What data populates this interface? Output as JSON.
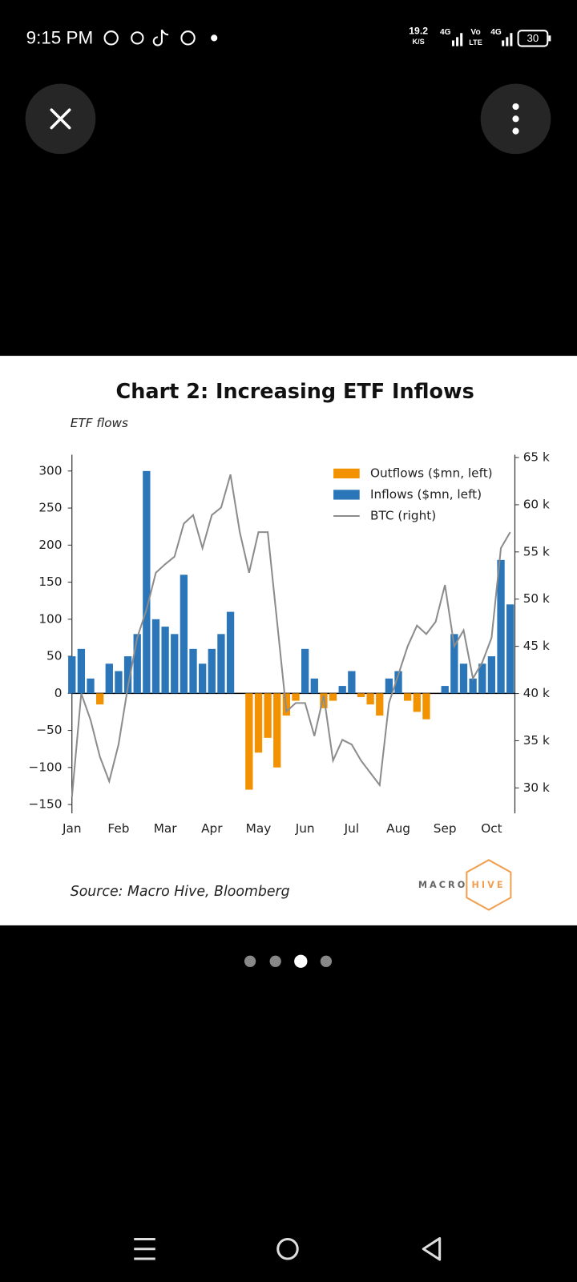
{
  "status_bar": {
    "time": "9:15 PM",
    "speed": "19.2",
    "speed_unit": "K/S",
    "signals": [
      "4G",
      "4G"
    ],
    "volte": [
      "Vo",
      "LTE"
    ],
    "battery": "30"
  },
  "chart_data": {
    "type": "bar",
    "title": "Chart 2: Increasing ETF Inflows",
    "subtitle": "ETF flows",
    "source": "Source: Macro Hive, Bloomberg",
    "logo": [
      "MACRO",
      "HIVE"
    ],
    "x": [
      0,
      0.2,
      0.4,
      0.6,
      0.8,
      1.0,
      1.2,
      1.4,
      1.6,
      1.8,
      2.0,
      2.2,
      2.4,
      2.6,
      2.8,
      3.0,
      3.2,
      3.4,
      3.6,
      3.8,
      4.0,
      4.2,
      4.4,
      4.6,
      4.8,
      5.0,
      5.2,
      5.4,
      5.6,
      5.8,
      6.0,
      6.2,
      6.4,
      6.6,
      6.8,
      7.0,
      7.2,
      7.4,
      7.6,
      7.8,
      8.0,
      8.2,
      8.4,
      8.6,
      8.8,
      9.0,
      9.2,
      9.4
    ],
    "series": [
      {
        "name": "Outflows ($mn, left)",
        "type": "bar",
        "color": "#f39200",
        "values": [
          null,
          null,
          null,
          -15,
          null,
          null,
          null,
          null,
          null,
          null,
          null,
          null,
          null,
          null,
          null,
          null,
          null,
          null,
          null,
          -130,
          -80,
          -60,
          -100,
          -30,
          -10,
          null,
          null,
          -20,
          -10,
          null,
          null,
          -5,
          -15,
          -30,
          null,
          null,
          -10,
          -25,
          -35,
          null,
          null,
          null,
          null,
          null,
          null,
          null,
          null,
          null
        ]
      },
      {
        "name": "Inflows ($mn, left)",
        "type": "bar",
        "color": "#2a76b8",
        "values": [
          50,
          60,
          20,
          null,
          40,
          30,
          50,
          80,
          300,
          100,
          90,
          80,
          160,
          60,
          40,
          60,
          80,
          110,
          null,
          null,
          null,
          null,
          null,
          null,
          null,
          60,
          20,
          null,
          null,
          10,
          30,
          null,
          null,
          null,
          20,
          30,
          null,
          null,
          null,
          null,
          10,
          80,
          40,
          20,
          40,
          50,
          180,
          120
        ]
      },
      {
        "name": "BTC (right)",
        "type": "line",
        "axis": "y2",
        "color": "#8c8c8c",
        "values": [
          29000,
          40000,
          37200,
          33300,
          30700,
          34600,
          40700,
          45900,
          48900,
          52800,
          53700,
          54500,
          58000,
          58900,
          55400,
          58900,
          59700,
          63200,
          57100,
          52800,
          57100,
          57100,
          47600,
          38100,
          39000,
          39000,
          35500,
          39800,
          32900,
          35100,
          34600,
          32900,
          31600,
          30300,
          39000,
          42000,
          45000,
          47200,
          46300,
          47600,
          51500,
          45000,
          46700,
          41600,
          43300,
          45900,
          55400,
          57100
        ]
      }
    ],
    "xlim": [
      0,
      9.5
    ],
    "xticks": [
      {
        "value": 0,
        "label": "Jan"
      },
      {
        "value": 1,
        "label": "Feb"
      },
      {
        "value": 2,
        "label": "Mar"
      },
      {
        "value": 3,
        "label": "Apr"
      },
      {
        "value": 4,
        "label": "May"
      },
      {
        "value": 5,
        "label": "Jun"
      },
      {
        "value": 6,
        "label": "Jul"
      },
      {
        "value": 7,
        "label": "Aug"
      },
      {
        "value": 8,
        "label": "Sep"
      },
      {
        "value": 9,
        "label": "Oct"
      }
    ],
    "ylim": [
      -162,
      322
    ],
    "yticks": [
      {
        "value": -150,
        "label": "−150"
      },
      {
        "value": -100,
        "label": "−100"
      },
      {
        "value": -50,
        "label": "−50"
      },
      0,
      50,
      100,
      150,
      200,
      250,
      300
    ],
    "y2lim": [
      27300,
      65300
    ],
    "y2ticks": [
      {
        "value": 30000,
        "label": "30 k"
      },
      {
        "value": 35000,
        "label": "35 k"
      },
      {
        "value": 40000,
        "label": "40 k"
      },
      {
        "value": 45000,
        "label": "45 k"
      },
      {
        "value": 50000,
        "label": "50 k"
      },
      {
        "value": 55000,
        "label": "55 k"
      },
      {
        "value": 60000,
        "label": "60 k"
      },
      {
        "value": 65000,
        "label": "65 k"
      }
    ],
    "legend": "upper right",
    "grid": false
  }
}
